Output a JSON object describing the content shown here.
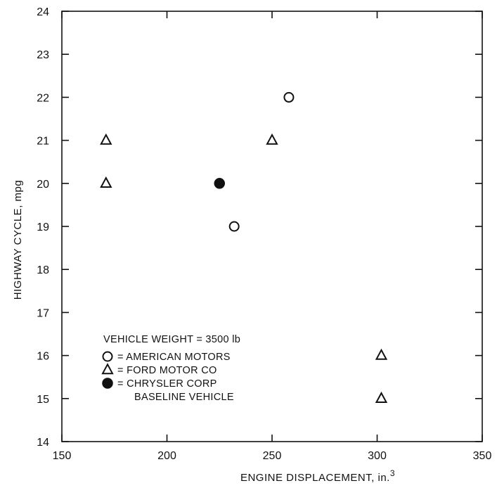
{
  "chart_data": {
    "type": "scatter",
    "title": "",
    "xlabel": "ENGINE DISPLACEMENT, in.",
    "xlabel_superscript": "3",
    "ylabel": "HIGHWAY CYCLE, mpg",
    "xlim": [
      150,
      350
    ],
    "ylim": [
      14,
      24
    ],
    "x_ticks": [
      150,
      200,
      250,
      300,
      350
    ],
    "y_ticks": [
      14,
      15,
      16,
      17,
      18,
      19,
      20,
      21,
      22,
      23,
      24
    ],
    "x_tick_labels": [
      "150",
      "200",
      "250",
      "300",
      "350"
    ],
    "y_tick_labels": [
      "14",
      "15",
      "16",
      "17",
      "18",
      "19",
      "20",
      "21",
      "22",
      "23",
      "24"
    ],
    "grid": false,
    "legend_position": "bottom-left",
    "annotation": "VEHICLE WEIGHT = 3500 lb",
    "series": [
      {
        "name": "AMERICAN MOTORS",
        "marker": "circle-open",
        "color": "#111111",
        "points": [
          {
            "x": 258,
            "y": 22
          },
          {
            "x": 232,
            "y": 19
          }
        ]
      },
      {
        "name": "FORD MOTOR CO",
        "marker": "triangle-open",
        "color": "#111111",
        "points": [
          {
            "x": 171,
            "y": 21
          },
          {
            "x": 171,
            "y": 20
          },
          {
            "x": 250,
            "y": 21
          },
          {
            "x": 302,
            "y": 16
          },
          {
            "x": 302,
            "y": 15
          }
        ]
      },
      {
        "name": "CHRYSLER CORP",
        "marker": "circle-filled",
        "color": "#111111",
        "points": [
          {
            "x": 225,
            "y": 20
          }
        ]
      }
    ],
    "legend": [
      {
        "symbol": "circle-open",
        "label": "= AMERICAN MOTORS"
      },
      {
        "symbol": "triangle-open",
        "label": "= FORD MOTOR CO"
      },
      {
        "symbol": "circle-filled",
        "label": "= CHRYSLER CORP"
      },
      {
        "symbol": "none",
        "label": "BASELINE VEHICLE"
      }
    ]
  }
}
